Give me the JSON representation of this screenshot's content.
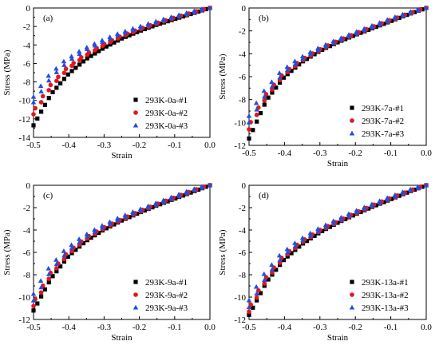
{
  "chart_data": [
    {
      "type": "scatter",
      "panel_label": "(a)",
      "xlabel": "Strain",
      "ylabel": "Stress (MPa)",
      "xlim": [
        -0.5,
        0.0
      ],
      "ylim": [
        -14,
        0
      ],
      "xticks": [
        -0.5,
        -0.4,
        -0.3,
        -0.2,
        -0.1,
        0.0
      ],
      "yticks": [
        -14,
        -12,
        -10,
        -8,
        -6,
        -4,
        -2,
        0
      ],
      "xtick_labels": [
        "-0.5",
        "-0.4",
        "-0.3",
        "-0.2",
        "-0.1",
        "0.0"
      ],
      "ytick_labels": [
        "-14",
        "-12",
        "-10",
        "-8",
        "-6",
        "-4",
        "-2",
        "0"
      ],
      "legend_position": "bottom-right",
      "series": [
        {
          "name": "293K-0a-#1",
          "marker": "square",
          "color": "#000000",
          "x": [
            0,
            -0.05,
            -0.1,
            -0.15,
            -0.2,
            -0.25,
            -0.3,
            -0.35,
            -0.4,
            -0.45,
            -0.5
          ],
          "y": [
            0,
            -0.6,
            -1.2,
            -1.8,
            -2.5,
            -3.3,
            -4.3,
            -5.5,
            -7.1,
            -9.3,
            -12.7
          ]
        },
        {
          "name": "293K-0a-#2",
          "marker": "circle",
          "color": "#e8141b",
          "x": [
            0,
            -0.05,
            -0.1,
            -0.15,
            -0.2,
            -0.25,
            -0.3,
            -0.35,
            -0.4,
            -0.45,
            -0.5
          ],
          "y": [
            0,
            -0.55,
            -1.1,
            -1.7,
            -2.35,
            -3.1,
            -4.0,
            -5.1,
            -6.5,
            -8.5,
            -11.5
          ]
        },
        {
          "name": "293K-0a-#3",
          "marker": "triangle",
          "color": "#1f4fe0",
          "x": [
            0,
            -0.05,
            -0.1,
            -0.15,
            -0.2,
            -0.25,
            -0.3,
            -0.35,
            -0.4,
            -0.45,
            -0.5
          ],
          "y": [
            0,
            -0.5,
            -1.0,
            -1.55,
            -2.15,
            -2.8,
            -3.6,
            -4.5,
            -5.7,
            -7.5,
            -10.2
          ]
        }
      ]
    },
    {
      "type": "scatter",
      "panel_label": "(b)",
      "xlabel": "Strain",
      "ylabel": "Stress (MPa)",
      "xlim": [
        -0.5,
        0.0
      ],
      "ylim": [
        -12,
        0
      ],
      "xticks": [
        -0.5,
        -0.4,
        -0.3,
        -0.2,
        -0.1,
        0.0
      ],
      "yticks": [
        -12,
        -10,
        -8,
        -6,
        -4,
        -2,
        0
      ],
      "xtick_labels": [
        "-0.5",
        "-0.4",
        "-0.3",
        "-0.2",
        "-0.1",
        "0.0"
      ],
      "ytick_labels": [
        "-12",
        "-10",
        "-8",
        "-6",
        "-4",
        "-2",
        "0"
      ],
      "legend_position": "bottom-right",
      "series": [
        {
          "name": "293K-7a-#1",
          "marker": "square",
          "color": "#000000",
          "x": [
            0,
            -0.05,
            -0.1,
            -0.15,
            -0.2,
            -0.25,
            -0.3,
            -0.35,
            -0.4,
            -0.45,
            -0.5
          ],
          "y": [
            0,
            -0.55,
            -1.15,
            -1.75,
            -2.35,
            -3.0,
            -3.75,
            -4.7,
            -6.0,
            -8.0,
            -11.4
          ]
        },
        {
          "name": "293K-7a-#2",
          "marker": "circle",
          "color": "#e8141b",
          "x": [
            0,
            -0.05,
            -0.1,
            -0.15,
            -0.2,
            -0.25,
            -0.3,
            -0.35,
            -0.4,
            -0.45,
            -0.5
          ],
          "y": [
            0,
            -0.55,
            -1.1,
            -1.7,
            -2.3,
            -2.95,
            -3.7,
            -4.6,
            -5.8,
            -7.7,
            -10.6
          ]
        },
        {
          "name": "293K-7a-#3",
          "marker": "triangle",
          "color": "#1f4fe0",
          "x": [
            0,
            -0.05,
            -0.1,
            -0.15,
            -0.2,
            -0.25,
            -0.3,
            -0.35,
            -0.4,
            -0.45,
            -0.5
          ],
          "y": [
            0,
            -0.5,
            -1.05,
            -1.65,
            -2.25,
            -2.9,
            -3.6,
            -4.45,
            -5.6,
            -7.4,
            -10.0
          ]
        }
      ]
    },
    {
      "type": "scatter",
      "panel_label": "(c)",
      "xlabel": "Strain",
      "ylabel": "Stress (MPa)",
      "xlim": [
        -0.5,
        0.0
      ],
      "ylim": [
        -12,
        0
      ],
      "xticks": [
        -0.5,
        -0.4,
        -0.3,
        -0.2,
        -0.1,
        0.0
      ],
      "yticks": [
        -12,
        -10,
        -8,
        -6,
        -4,
        -2,
        0
      ],
      "xtick_labels": [
        "-0.5",
        "-0.4",
        "-0.3",
        "-0.2",
        "-0.1",
        "0.0"
      ],
      "ytick_labels": [
        "-12",
        "-10",
        "-8",
        "-6",
        "-4",
        "-2",
        "0"
      ],
      "legend_position": "bottom-right",
      "series": [
        {
          "name": "293K-9a-#1",
          "marker": "square",
          "color": "#000000",
          "x": [
            0,
            -0.05,
            -0.1,
            -0.15,
            -0.2,
            -0.25,
            -0.3,
            -0.35,
            -0.4,
            -0.45,
            -0.5
          ],
          "y": [
            0,
            -0.6,
            -1.2,
            -1.8,
            -2.45,
            -3.15,
            -3.95,
            -4.95,
            -6.3,
            -8.3,
            -11.2
          ]
        },
        {
          "name": "293K-9a-#2",
          "marker": "circle",
          "color": "#e8141b",
          "x": [
            0,
            -0.05,
            -0.1,
            -0.15,
            -0.2,
            -0.25,
            -0.3,
            -0.35,
            -0.4,
            -0.45,
            -0.5
          ],
          "y": [
            0,
            -0.55,
            -1.15,
            -1.75,
            -2.4,
            -3.1,
            -3.85,
            -4.8,
            -6.1,
            -8.0,
            -10.8
          ]
        },
        {
          "name": "293K-9a-#3",
          "marker": "triangle",
          "color": "#1f4fe0",
          "x": [
            0,
            -0.05,
            -0.1,
            -0.15,
            -0.2,
            -0.25,
            -0.3,
            -0.35,
            -0.4,
            -0.45,
            -0.5
          ],
          "y": [
            0,
            -0.5,
            -1.1,
            -1.7,
            -2.3,
            -2.95,
            -3.7,
            -4.6,
            -5.8,
            -7.6,
            -10.3
          ]
        }
      ]
    },
    {
      "type": "scatter",
      "panel_label": "(d)",
      "xlabel": "Strain",
      "ylabel": "Stress (MPa)",
      "xlim": [
        -0.5,
        0.0
      ],
      "ylim": [
        -12,
        0
      ],
      "xticks": [
        -0.5,
        -0.4,
        -0.3,
        -0.2,
        -0.1,
        0.0
      ],
      "yticks": [
        -12,
        -10,
        -8,
        -6,
        -4,
        -2,
        0
      ],
      "xtick_labels": [
        "-0.5",
        "-0.4",
        "-0.3",
        "-0.2",
        "-0.1",
        "0.0"
      ],
      "ytick_labels": [
        "-12",
        "-10",
        "-8",
        "-6",
        "-4",
        "-2",
        "0"
      ],
      "legend_position": "bottom-right",
      "series": [
        {
          "name": "293K-13a-#1",
          "marker": "square",
          "color": "#000000",
          "x": [
            0,
            -0.05,
            -0.1,
            -0.15,
            -0.2,
            -0.25,
            -0.3,
            -0.35,
            -0.4,
            -0.45,
            -0.5
          ],
          "y": [
            0,
            -0.6,
            -1.25,
            -1.9,
            -2.6,
            -3.35,
            -4.2,
            -5.25,
            -6.6,
            -8.6,
            -11.6
          ]
        },
        {
          "name": "293K-13a-#2",
          "marker": "circle",
          "color": "#e8141b",
          "x": [
            0,
            -0.05,
            -0.1,
            -0.15,
            -0.2,
            -0.25,
            -0.3,
            -0.35,
            -0.4,
            -0.45,
            -0.5
          ],
          "y": [
            0,
            -0.6,
            -1.2,
            -1.85,
            -2.55,
            -3.3,
            -4.1,
            -5.1,
            -6.4,
            -8.4,
            -11.3
          ]
        },
        {
          "name": "293K-13a-#3",
          "marker": "triangle",
          "color": "#1f4fe0",
          "x": [
            0,
            -0.05,
            -0.1,
            -0.15,
            -0.2,
            -0.25,
            -0.3,
            -0.35,
            -0.4,
            -0.45,
            -0.5
          ],
          "y": [
            0,
            -0.55,
            -1.15,
            -1.8,
            -2.45,
            -3.2,
            -4.0,
            -4.95,
            -6.2,
            -8.1,
            -10.9
          ]
        }
      ]
    }
  ]
}
